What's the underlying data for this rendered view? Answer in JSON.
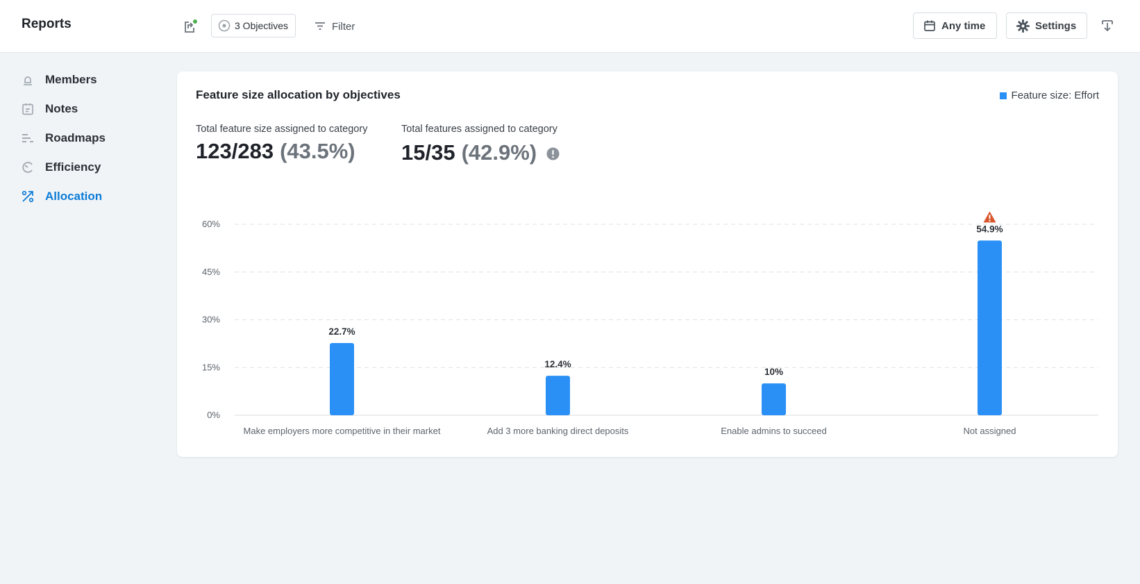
{
  "app": {
    "title": "Reports"
  },
  "toolbar": {
    "objectives_label": "3 Objectives",
    "filter_label": "Filter",
    "time_label": "Any time",
    "settings_label": "Settings"
  },
  "sidebar": {
    "items": [
      {
        "label": "Members",
        "icon": "members-icon",
        "active": false
      },
      {
        "label": "Notes",
        "icon": "notes-icon",
        "active": false
      },
      {
        "label": "Roadmaps",
        "icon": "roadmaps-icon",
        "active": false
      },
      {
        "label": "Efficiency",
        "icon": "efficiency-icon",
        "active": false
      },
      {
        "label": "Allocation",
        "icon": "allocation-icon",
        "active": true
      }
    ]
  },
  "card": {
    "title": "Feature size allocation by objectives",
    "legend_label": "Feature size: Effort",
    "stats": [
      {
        "label": "Total feature size assigned to category",
        "value": "123/283",
        "pct": "(43.5%)"
      },
      {
        "label": "Total features assigned to category",
        "value": "15/35",
        "pct": "(42.9%)"
      }
    ]
  },
  "colors": {
    "bar": "#2a90f5",
    "accent": "#0a7bd6",
    "warning": "#d9552b",
    "status_dot": "#4caf50"
  },
  "chart_data": {
    "type": "bar",
    "title": "Feature size allocation by objectives",
    "categories": [
      "Make employers more competitive in their market",
      "Add 3 more banking direct deposits",
      "Enable admins to succeed",
      "Not assigned"
    ],
    "series": [
      {
        "name": "Feature size: Effort",
        "values": [
          22.7,
          12.4,
          10,
          54.9
        ]
      }
    ],
    "data_labels": [
      "22.7%",
      "12.4%",
      "10%",
      "54.9%"
    ],
    "warning_on": [
      "Not assigned"
    ],
    "yticks": [
      0,
      15,
      30,
      45,
      60
    ],
    "ytick_labels": [
      "0%",
      "15%",
      "30%",
      "45%",
      "60%"
    ],
    "ylim": [
      0,
      60
    ],
    "grid": true,
    "legend_position": "top-right"
  }
}
